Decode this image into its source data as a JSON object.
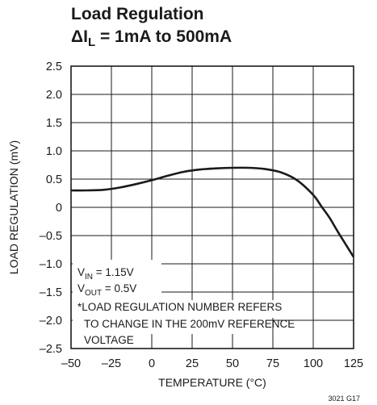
{
  "chart_data": {
    "type": "line",
    "title_line1": "Load Regulation",
    "title_line2": {
      "prefix": "ΔI",
      "sub": "L",
      "suffix": " = 1mA to 500mA"
    },
    "xlabel": "TEMPERATURE (°C)",
    "ylabel": "LOAD REGULATION (mV)",
    "xlim": [
      -50,
      125
    ],
    "ylim": [
      -2.5,
      2.5
    ],
    "x_ticks": [
      -50,
      -25,
      0,
      25,
      50,
      75,
      100,
      125
    ],
    "x_tick_labels": [
      "–50",
      "–25",
      "0",
      "25",
      "50",
      "75",
      "100",
      "125"
    ],
    "y_ticks": [
      2.5,
      2.0,
      1.5,
      1.0,
      0.5,
      0,
      -0.5,
      -1.0,
      -1.5,
      -2.0,
      -2.5
    ],
    "y_tick_labels": [
      "2.5",
      "2.0",
      "1.5",
      "1.0",
      "0.5",
      "0",
      "–0.5",
      "–1.0",
      "–1.5",
      "–2.0",
      "–2.5"
    ],
    "grid": true,
    "series": [
      {
        "x": [
          -50,
          -40,
          -30,
          -20,
          -10,
          0,
          10,
          20,
          30,
          40,
          50,
          60,
          70,
          80,
          90,
          100,
          105,
          110,
          115,
          120,
          125
        ],
        "y": [
          0.3,
          0.3,
          0.31,
          0.35,
          0.41,
          0.48,
          0.56,
          0.63,
          0.67,
          0.69,
          0.7,
          0.7,
          0.68,
          0.62,
          0.48,
          0.22,
          0.02,
          -0.18,
          -0.42,
          -0.65,
          -0.88
        ]
      }
    ],
    "annotations": {
      "vin": {
        "prefix": "V",
        "sub": "IN",
        "suffix": " = 1.15V"
      },
      "vout": {
        "prefix": "V",
        "sub": "OUT",
        "suffix": " = 0.5V"
      },
      "note_lines": [
        "*LOAD REGULATION NUMBER REFERS",
        "TO CHANGE IN THE 200mV REFERENCE",
        "VOLTAGE"
      ]
    },
    "figure_id": "3021 G17"
  }
}
